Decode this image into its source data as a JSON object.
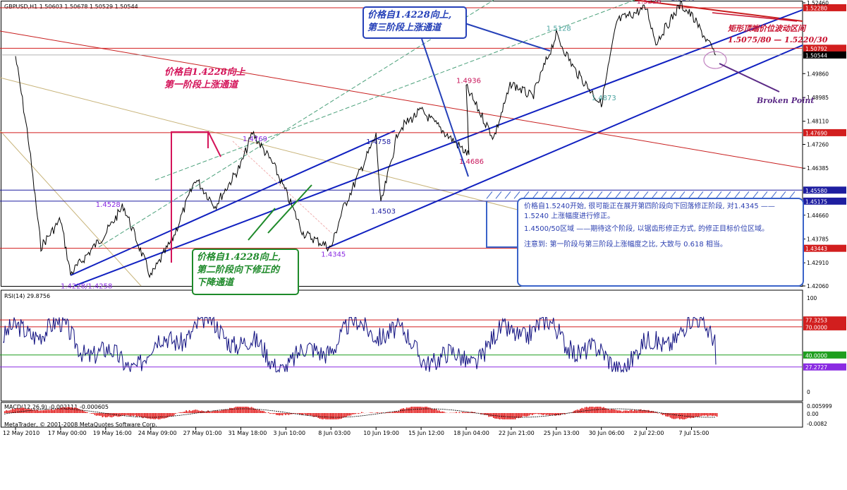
{
  "header": {
    "symbol": "GBPUSD,H1",
    "ohlc": "1.50603 1.50678 1.50529 1.50544"
  },
  "chart_data": {
    "type": "line",
    "ylim": [
      1.4206,
      1.5246
    ],
    "y_ticks": [
      "1.52460",
      "1.52280",
      "1.50792",
      "1.50544",
      "1.49860",
      "1.48985",
      "1.48110",
      "1.47690",
      "1.47260",
      "1.46385",
      "1.45580",
      "1.45175",
      "1.44660",
      "1.43785",
      "1.43443",
      "1.42910",
      "1.42060"
    ],
    "price_series_anchors": [
      {
        "x": "12 May 2010",
        "y": 1.505
      },
      {
        "x": "13 May",
        "y": 1.475
      },
      {
        "x": "14 May",
        "y": 1.435
      },
      {
        "x": "17 May 00:00",
        "y": 1.445
      },
      {
        "x": "18 May",
        "y": 1.425
      },
      {
        "x": "19 May 16:00",
        "y": 1.44
      },
      {
        "x": "21 May",
        "y": 1.45
      },
      {
        "x": "24 May 09:00",
        "y": 1.424
      },
      {
        "x": "26 May",
        "y": 1.438
      },
      {
        "x": "27 May 01:00",
        "y": 1.46
      },
      {
        "x": "28 May",
        "y": 1.45
      },
      {
        "x": "31 May 18:00",
        "y": 1.465
      },
      {
        "x": "1 Jun",
        "y": 1.4769
      },
      {
        "x": "2 Jun",
        "y": 1.465
      },
      {
        "x": "3 Jun 10:00",
        "y": 1.455
      },
      {
        "x": "7 Jun",
        "y": 1.44
      },
      {
        "x": "8 Jun 03:00",
        "y": 1.4345
      },
      {
        "x": "9 Jun",
        "y": 1.448
      },
      {
        "x": "10 Jun 19:00",
        "y": 1.4758
      },
      {
        "x": "11 Jun",
        "y": 1.4503
      },
      {
        "x": "14 Jun",
        "y": 1.478
      },
      {
        "x": "15 Jun 12:00",
        "y": 1.485
      },
      {
        "x": "17 Jun",
        "y": 1.4686
      },
      {
        "x": "18 Jun 04:00",
        "y": 1.4936
      },
      {
        "x": "21 Jun",
        "y": 1.475
      },
      {
        "x": "22 Jun 21:00",
        "y": 1.495
      },
      {
        "x": "24 Jun",
        "y": 1.49
      },
      {
        "x": "25 Jun 13:00",
        "y": 1.5128
      },
      {
        "x": "28 Jun",
        "y": 1.5
      },
      {
        "x": "30 Jun 06:00",
        "y": 1.4873
      },
      {
        "x": "1 Jul",
        "y": 1.518
      },
      {
        "x": "2 Jul 22:00",
        "y": 1.5228
      },
      {
        "x": "5 Jul",
        "y": 1.51
      },
      {
        "x": "6 Jul",
        "y": 1.524
      },
      {
        "x": "7 Jul 15:00",
        "y": 1.52
      },
      {
        "x": "8 Jul",
        "y": 1.5054
      }
    ],
    "horizontal_levels": [
      {
        "value": 1.5228,
        "label": "1.52280",
        "color": "#d21e1e"
      },
      {
        "value": 1.50792,
        "label": "1.50792",
        "color": "#d21e1e"
      },
      {
        "value": 1.4769,
        "label": "1.47690",
        "color": "#d21e1e"
      },
      {
        "value": 1.4558,
        "label": "1.45580",
        "color": "#1e1ea0"
      },
      {
        "value": 1.45175,
        "label": "1.45175",
        "color": "#1e1ea0"
      },
      {
        "value": 1.43443,
        "label": "1.43443",
        "color": "#d21e1e"
      }
    ],
    "current_price": {
      "value": 1.50544,
      "label": "1.50544"
    },
    "price_labels": [
      {
        "text": "1.4228/1.4258",
        "x": "18 May",
        "y": 1.4228,
        "color": "#8a2be2"
      },
      {
        "text": "1.4528",
        "x": "19 May 16:00",
        "y": 1.4528,
        "color": "#8a2be2"
      },
      {
        "text": "1.4769",
        "x": "1 Jun",
        "y": 1.4769,
        "color": "#8a2be2"
      },
      {
        "text": "1.4345",
        "x": "8 Jun 03:00",
        "y": 1.4345,
        "color": "#8a2be2"
      },
      {
        "text": "1.4503",
        "x": "11 Jun",
        "y": 1.4503,
        "color": "#1e1ea0"
      },
      {
        "text": "1.4758",
        "x": "10 Jun 19:00",
        "y": 1.4758,
        "color": "#1e1ea0"
      },
      {
        "text": "1.4686",
        "x": "17 Jun",
        "y": 1.4686,
        "color": "#c8145a"
      },
      {
        "text": "1.4936",
        "x": "18 Jun 04:00",
        "y": 1.4936,
        "color": "#c8145a"
      },
      {
        "text": "1.5128",
        "x": "25 Jun 13:00",
        "y": 1.5128,
        "color": "#4aa3a0"
      },
      {
        "text": "1.4873",
        "x": "30 Jun 06:00",
        "y": 1.4873,
        "color": "#4aa3a0"
      },
      {
        "text": "1.5228",
        "x": "2 Jul 22:00",
        "y": 1.5228,
        "color": "#c8145a"
      },
      {
        "text": "1.5240",
        "x": "6 Jul",
        "y": 1.524,
        "color": "#1e1ea0"
      }
    ],
    "x_labels": [
      "12 May 2010",
      "17 May 00:00",
      "19 May 16:00",
      "24 May 09:00",
      "27 May 01:00",
      "31 May 18:00",
      "3 Jun 10:00",
      "8 Jun 03:00",
      "10 Jun 19:00",
      "15 Jun 12:00",
      "18 Jun 04:00",
      "22 Jun 21:00",
      "25 Jun 13:00",
      "30 Jun 06:00",
      "2 Jul 22:00",
      "7 Jul 15:00"
    ],
    "rsi": {
      "label": "RSI(14) 29.8756",
      "ylim": [
        0,
        100
      ],
      "levels": [
        {
          "value": 77.3253,
          "label": "77.3253",
          "color": "#d21e1e"
        },
        {
          "value": 70,
          "label": "70.0000",
          "color": "#d21e1e"
        },
        {
          "value": 40,
          "label": "40.0000",
          "color": "#1e9e1e"
        },
        {
          "value": 27.2727,
          "label": "27.2727",
          "color": "#8a2be2"
        }
      ],
      "axis_labels": [
        "100",
        "0"
      ],
      "last": 29.8756
    },
    "macd": {
      "label": "MACD(12,26,9) -0.002111 -0.000605",
      "ticks": [
        "0.005999",
        "0.00",
        "-0.0082"
      ]
    },
    "watermark": "MetaTrader, © 2001-2008 MetaQuotes Software Corp."
  },
  "annotations": {
    "phase1": [
      "价格自1.4228向上",
      "第一阶段上涨通道"
    ],
    "phase2": [
      "价格自1.4228向上,",
      "第二阶段向下修正的",
      "下降通道"
    ],
    "phase3": [
      "价格自1.4228向上,",
      "第三阶段上涨通道"
    ],
    "range": [
      "矩形顶端价位波动区间",
      "1.5075/80 — 1.5220/30"
    ],
    "broken_point": "Broken Point",
    "note_lines": [
      "价格自1.5240开始, 很可能正在展开第四阶段向下回落修正阶段, 对1.4345 —— 1.5240 上涨幅度进行修正。",
      "1.4500/50区域 ——期待这个阶段, 以锯齿形修正方式, 的修正目标价位区域。",
      "注意到: 第一阶段与第三阶段上涨幅度之比, 大致与 0.618 相当。"
    ]
  }
}
